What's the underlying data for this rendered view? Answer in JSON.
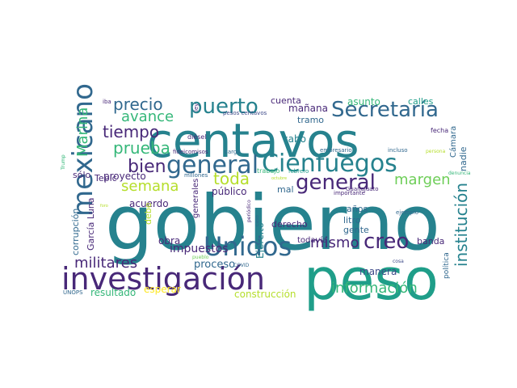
{
  "palette": {
    "dark_purple": "#482878",
    "indigo": "#3e4a89",
    "blue": "#31688e",
    "teal": "#26828e",
    "sea": "#1f9e89",
    "green": "#35b779",
    "lime": "#6ece58",
    "chartreuse": "#b5de2b",
    "yellow": "#fde725"
  },
  "words": [
    {
      "text": "gobierno",
      "color": "teal"
    },
    {
      "text": "centavos",
      "color": "teal"
    },
    {
      "text": "peso",
      "color": "sea"
    },
    {
      "text": "investigación",
      "color": "dark_purple"
    },
    {
      "text": "mexicano",
      "color": "blue"
    },
    {
      "text": "general",
      "color": "blue"
    },
    {
      "text": "Cienfuegos",
      "color": "teal"
    },
    {
      "text": "Unidos",
      "color": "blue"
    },
    {
      "text": "Secretaría",
      "color": "blue"
    },
    {
      "text": "puerto",
      "color": "teal"
    },
    {
      "text": "precio",
      "color": "blue"
    },
    {
      "text": "avance",
      "color": "green"
    },
    {
      "text": "tiempo",
      "color": "dark_purple"
    },
    {
      "text": "prueba",
      "color": "green"
    },
    {
      "text": "Marina",
      "color": "green"
    },
    {
      "text": "bien",
      "color": "dark_purple"
    },
    {
      "text": "general",
      "color": "dark_purple"
    },
    {
      "text": "margen",
      "color": "lime"
    },
    {
      "text": "semana",
      "color": "chartreuse"
    },
    {
      "text": "toda",
      "color": "chartreuse"
    },
    {
      "text": "institución",
      "color": "teal"
    },
    {
      "text": "información",
      "color": "green"
    },
    {
      "text": "creo",
      "color": "dark_purple"
    },
    {
      "text": "mismo",
      "color": "dark_purple"
    },
    {
      "text": "militares",
      "color": "dark_purple"
    },
    {
      "text": "impuestos",
      "color": "dark_purple"
    },
    {
      "text": "proceso",
      "color": "blue"
    },
    {
      "text": "obra",
      "color": "dark_purple"
    },
    {
      "text": "resultado",
      "color": "green"
    },
    {
      "text": "esperar",
      "color": "yellow"
    },
    {
      "text": "construcción",
      "color": "chartreuse"
    },
    {
      "text": "manera",
      "color": "indigo"
    },
    {
      "text": "banda",
      "color": "dark_purple"
    },
    {
      "text": "cuenta",
      "color": "dark_purple"
    },
    {
      "text": "mañana",
      "color": "dark_purple"
    },
    {
      "text": "tramo",
      "color": "blue"
    },
    {
      "text": "asunto",
      "color": "green"
    },
    {
      "text": "calles",
      "color": "sea"
    },
    {
      "text": "cabo",
      "color": "teal"
    },
    {
      "text": "nadie",
      "color": "blue"
    },
    {
      "text": "acuerdo",
      "color": "dark_purple"
    },
    {
      "text": "proyecto",
      "color": "dark_purple"
    },
    {
      "text": "sólo",
      "color": "dark_purple"
    },
    {
      "text": "Tepic",
      "color": "dark_purple"
    },
    {
      "text": "García Luna",
      "color": "dark_purple"
    },
    {
      "text": "corrupción",
      "color": "blue"
    },
    {
      "text": "público",
      "color": "dark_purple"
    },
    {
      "text": "mal",
      "color": "blue"
    },
    {
      "text": "derecho",
      "color": "dark_purple"
    },
    {
      "text": "años",
      "color": "blue"
    },
    {
      "text": "litro",
      "color": "blue"
    },
    {
      "text": "gente",
      "color": "blue"
    },
    {
      "text": "Ejército",
      "color": "teal"
    },
    {
      "text": "debe",
      "color": "chartreuse"
    },
    {
      "text": "generales",
      "color": "dark_purple"
    },
    {
      "text": "todavía",
      "color": "dark_purple"
    },
    {
      "text": "política",
      "color": "blue"
    },
    {
      "text": "Cámara",
      "color": "blue"
    },
    {
      "text": "fecha",
      "color": "dark_purple"
    },
    {
      "text": "diésel",
      "color": "dark_purple"
    },
    {
      "text": "ley",
      "color": "dark_purple"
    },
    {
      "text": "iba",
      "color": "dark_purple"
    },
    {
      "text": "pesos centavos",
      "color": "indigo"
    },
    {
      "text": "fideicomisos",
      "color": "dark_purple"
    },
    {
      "text": "millones",
      "color": "blue"
    },
    {
      "text": "cargo",
      "color": "blue"
    },
    {
      "text": "trabajo",
      "color": "green"
    },
    {
      "text": "febrero",
      "color": "sea"
    },
    {
      "text": "empresario",
      "color": "blue"
    },
    {
      "text": "incluso",
      "color": "blue"
    },
    {
      "text": "persona",
      "color": "chartreuse"
    },
    {
      "text": "denuncia",
      "color": "green"
    },
    {
      "text": "ejemplo",
      "color": "blue"
    },
    {
      "text": "importante",
      "color": "dark_purple"
    },
    {
      "text": "Guanajuato",
      "color": "dark_purple"
    },
    {
      "text": "periódico",
      "color": "dark_purple"
    },
    {
      "text": "cosa",
      "color": "indigo"
    },
    {
      "text": "COVID",
      "color": "blue"
    },
    {
      "text": "pueblo",
      "color": "lime"
    },
    {
      "text": "UNOPS",
      "color": "blue"
    },
    {
      "text": "Trump",
      "color": "green"
    },
    {
      "text": "foro",
      "color": "chartreuse"
    },
    {
      "text": "caso",
      "color": "blue"
    },
    {
      "text": "octubre",
      "color": "chartreuse"
    }
  ]
}
